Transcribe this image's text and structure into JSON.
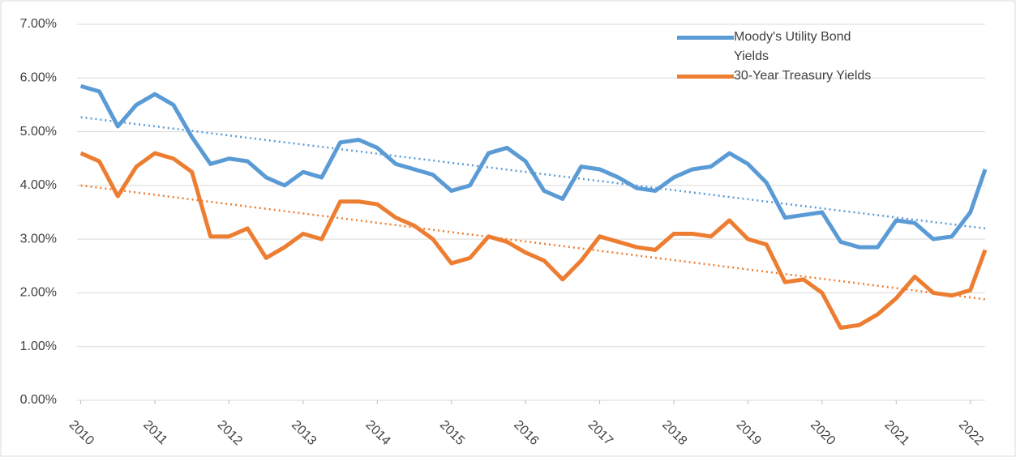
{
  "chart_data": {
    "type": "line",
    "x": [
      2010,
      2010.25,
      2010.5,
      2010.75,
      2011,
      2011.25,
      2011.5,
      2011.75,
      2012,
      2012.25,
      2012.5,
      2012.75,
      2013,
      2013.25,
      2013.5,
      2013.75,
      2014,
      2014.25,
      2014.5,
      2014.75,
      2015,
      2015.25,
      2015.5,
      2015.75,
      2016,
      2016.25,
      2016.5,
      2016.75,
      2017,
      2017.25,
      2017.5,
      2017.75,
      2018,
      2018.25,
      2018.5,
      2018.75,
      2019,
      2019.25,
      2019.5,
      2019.75,
      2020,
      2020.25,
      2020.5,
      2020.75,
      2021,
      2021.25,
      2021.5,
      2021.75,
      2022,
      2022.2
    ],
    "series": [
      {
        "name": "Moody's Utility Bond Yields",
        "color": "#5b9bd5",
        "trend": [
          5.27,
          3.2
        ],
        "values": [
          5.85,
          5.75,
          5.1,
          5.5,
          5.7,
          5.5,
          4.9,
          4.4,
          4.5,
          4.45,
          4.15,
          4.0,
          4.25,
          4.15,
          4.8,
          4.85,
          4.7,
          4.4,
          4.3,
          4.2,
          3.9,
          4.0,
          4.6,
          4.7,
          4.45,
          3.9,
          3.75,
          4.35,
          4.3,
          4.15,
          3.95,
          3.9,
          4.15,
          4.3,
          4.35,
          4.6,
          4.4,
          4.05,
          3.4,
          3.45,
          3.5,
          2.95,
          2.85,
          2.85,
          3.35,
          3.3,
          3.0,
          3.05,
          3.5,
          4.3
        ]
      },
      {
        "name": "30-Year Treasury Yields",
        "color": "#ed7d31",
        "trend": [
          4.0,
          1.88
        ],
        "values": [
          4.6,
          4.45,
          3.8,
          4.35,
          4.6,
          4.5,
          4.25,
          3.05,
          3.05,
          3.2,
          2.65,
          2.85,
          3.1,
          3.0,
          3.7,
          3.7,
          3.65,
          3.4,
          3.25,
          3.0,
          2.55,
          2.65,
          3.05,
          2.95,
          2.75,
          2.6,
          2.25,
          2.6,
          3.05,
          2.95,
          2.85,
          2.8,
          3.1,
          3.1,
          3.05,
          3.35,
          3.0,
          2.9,
          2.2,
          2.25,
          2.0,
          1.35,
          1.4,
          1.6,
          1.9,
          2.3,
          2.0,
          1.95,
          2.05,
          2.8
        ]
      }
    ],
    "xlim": [
      2009.95,
      2022.2
    ],
    "xticks": [
      2010,
      2011,
      2012,
      2013,
      2014,
      2015,
      2016,
      2017,
      2018,
      2019,
      2020,
      2021,
      2022
    ],
    "ylim": [
      0,
      7
    ],
    "yticks": [
      {
        "value": 0,
        "label": "0.00%"
      },
      {
        "value": 1,
        "label": "1.00%"
      },
      {
        "value": 2,
        "label": "2.00%"
      },
      {
        "value": 3,
        "label": "3.00%"
      },
      {
        "value": 4,
        "label": "4.00%"
      },
      {
        "value": 5,
        "label": "5.00%"
      },
      {
        "value": 6,
        "label": "6.00%"
      },
      {
        "value": 7,
        "label": "7.00%"
      }
    ],
    "grid": true,
    "legend": "upper-right"
  }
}
